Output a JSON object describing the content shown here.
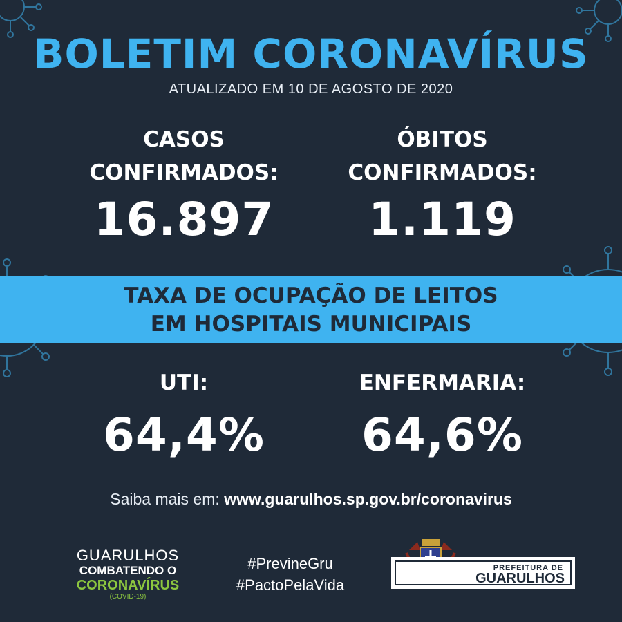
{
  "header": {
    "title": "BOLETIM CORONAVÍRUS",
    "updated": "ATUALIZADO EM 10 DE AGOSTO DE 2020"
  },
  "stats": {
    "cases_label_1": "CASOS",
    "cases_label_2": "CONFIRMADOS:",
    "cases_value": "16.897",
    "deaths_label_1": "ÓBITOS",
    "deaths_label_2": "CONFIRMADOS:",
    "deaths_value": "1.119"
  },
  "band": {
    "line1": "TAXA DE OCUPAÇÃO DE LEITOS",
    "line2": "EM HOSPITAIS MUNICIPAIS"
  },
  "occupancy": {
    "uti_label": "UTI:",
    "uti_value": "64,4%",
    "ward_label": "ENFERMARIA:",
    "ward_value": "64,6%"
  },
  "more_info": {
    "prefix": "Saiba mais em: ",
    "url": "www.guarulhos.sp.gov.br/coronavirus"
  },
  "footer": {
    "brand_line1": "GUARULHOS",
    "brand_line2": "COMBATENDO O",
    "brand_line3": "CORONAVÍRUS",
    "brand_line4": "(COVID-19)",
    "hashtag1": "#PrevineGru",
    "hashtag2": "#PactoPelaVida",
    "prefeitura_line1": "PREFEITURA DE",
    "prefeitura_line2": "GUARULHOS"
  },
  "colors": {
    "background": "#1f2a38",
    "accent_blue": "#3fb3f0",
    "accent_green": "#8cc63f",
    "text": "#ffffff"
  },
  "icons": [
    "virus-icon",
    "coat-of-arms-icon"
  ]
}
